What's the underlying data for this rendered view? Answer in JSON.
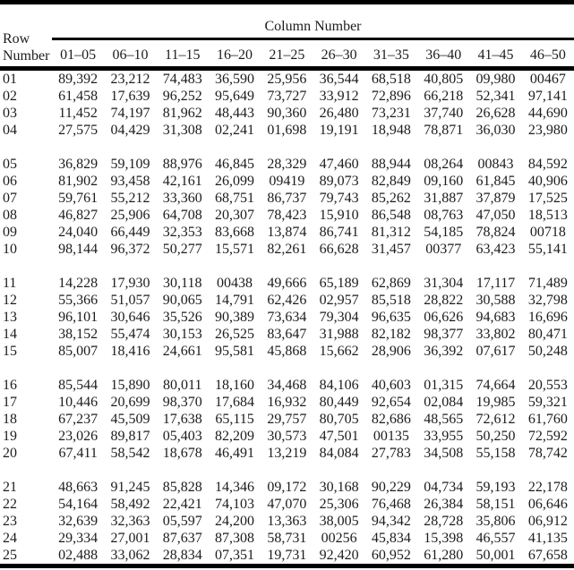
{
  "table": {
    "title": "Column Number",
    "row_header_line1": "Row",
    "row_header_line2": "Number",
    "column_headers": [
      "01–05",
      "06–10",
      "11–15",
      "16–20",
      "21–25",
      "26–30",
      "31–35",
      "36–40",
      "41–45",
      "46–50"
    ],
    "group_breaks_after": [
      "04",
      "10",
      "15",
      "20"
    ],
    "rows": [
      {
        "row_number": "01",
        "values": [
          "89,392",
          "23,212",
          "74,483",
          "36,590",
          "25,956",
          "36,544",
          "68,518",
          "40,805",
          "09,980",
          "00467"
        ]
      },
      {
        "row_number": "02",
        "values": [
          "61,458",
          "17,639",
          "96,252",
          "95,649",
          "73,727",
          "33,912",
          "72,896",
          "66,218",
          "52,341",
          "97,141"
        ]
      },
      {
        "row_number": "03",
        "values": [
          "11,452",
          "74,197",
          "81,962",
          "48,443",
          "90,360",
          "26,480",
          "73,231",
          "37,740",
          "26,628",
          "44,690"
        ]
      },
      {
        "row_number": "04",
        "values": [
          "27,575",
          "04,429",
          "31,308",
          "02,241",
          "01,698",
          "19,191",
          "18,948",
          "78,871",
          "36,030",
          "23,980"
        ]
      },
      {
        "row_number": "05",
        "values": [
          "36,829",
          "59,109",
          "88,976",
          "46,845",
          "28,329",
          "47,460",
          "88,944",
          "08,264",
          "00843",
          "84,592"
        ]
      },
      {
        "row_number": "06",
        "values": [
          "81,902",
          "93,458",
          "42,161",
          "26,099",
          "09419",
          "89,073",
          "82,849",
          "09,160",
          "61,845",
          "40,906"
        ]
      },
      {
        "row_number": "07",
        "values": [
          "59,761",
          "55,212",
          "33,360",
          "68,751",
          "86,737",
          "79,743",
          "85,262",
          "31,887",
          "37,879",
          "17,525"
        ]
      },
      {
        "row_number": "08",
        "values": [
          "46,827",
          "25,906",
          "64,708",
          "20,307",
          "78,423",
          "15,910",
          "86,548",
          "08,763",
          "47,050",
          "18,513"
        ]
      },
      {
        "row_number": "09",
        "values": [
          "24,040",
          "66,449",
          "32,353",
          "83,668",
          "13,874",
          "86,741",
          "81,312",
          "54,185",
          "78,824",
          "00718"
        ]
      },
      {
        "row_number": "10",
        "values": [
          "98,144",
          "96,372",
          "50,277",
          "15,571",
          "82,261",
          "66,628",
          "31,457",
          "00377",
          "63,423",
          "55,141"
        ]
      },
      {
        "row_number": "11",
        "values": [
          "14,228",
          "17,930",
          "30,118",
          "00438",
          "49,666",
          "65,189",
          "62,869",
          "31,304",
          "17,117",
          "71,489"
        ]
      },
      {
        "row_number": "12",
        "values": [
          "55,366",
          "51,057",
          "90,065",
          "14,791",
          "62,426",
          "02,957",
          "85,518",
          "28,822",
          "30,588",
          "32,798"
        ]
      },
      {
        "row_number": "13",
        "values": [
          "96,101",
          "30,646",
          "35,526",
          "90,389",
          "73,634",
          "79,304",
          "96,635",
          "06,626",
          "94,683",
          "16,696"
        ]
      },
      {
        "row_number": "14",
        "values": [
          "38,152",
          "55,474",
          "30,153",
          "26,525",
          "83,647",
          "31,988",
          "82,182",
          "98,377",
          "33,802",
          "80,471"
        ]
      },
      {
        "row_number": "15",
        "values": [
          "85,007",
          "18,416",
          "24,661",
          "95,581",
          "45,868",
          "15,662",
          "28,906",
          "36,392",
          "07,617",
          "50,248"
        ]
      },
      {
        "row_number": "16",
        "values": [
          "85,544",
          "15,890",
          "80,011",
          "18,160",
          "34,468",
          "84,106",
          "40,603",
          "01,315",
          "74,664",
          "20,553"
        ]
      },
      {
        "row_number": "17",
        "values": [
          "10,446",
          "20,699",
          "98,370",
          "17,684",
          "16,932",
          "80,449",
          "92,654",
          "02,084",
          "19,985",
          "59,321"
        ]
      },
      {
        "row_number": "18",
        "values": [
          "67,237",
          "45,509",
          "17,638",
          "65,115",
          "29,757",
          "80,705",
          "82,686",
          "48,565",
          "72,612",
          "61,760"
        ]
      },
      {
        "row_number": "19",
        "values": [
          "23,026",
          "89,817",
          "05,403",
          "82,209",
          "30,573",
          "47,501",
          "00135",
          "33,955",
          "50,250",
          "72,592"
        ]
      },
      {
        "row_number": "20",
        "values": [
          "67,411",
          "58,542",
          "18,678",
          "46,491",
          "13,219",
          "84,084",
          "27,783",
          "34,508",
          "55,158",
          "78,742"
        ]
      },
      {
        "row_number": "21",
        "values": [
          "48,663",
          "91,245",
          "85,828",
          "14,346",
          "09,172",
          "30,168",
          "90,229",
          "04,734",
          "59,193",
          "22,178"
        ]
      },
      {
        "row_number": "22",
        "values": [
          "54,164",
          "58,492",
          "22,421",
          "74,103",
          "47,070",
          "25,306",
          "76,468",
          "26,384",
          "58,151",
          "06,646"
        ]
      },
      {
        "row_number": "23",
        "values": [
          "32,639",
          "32,363",
          "05,597",
          "24,200",
          "13,363",
          "38,005",
          "94,342",
          "28,728",
          "35,806",
          "06,912"
        ]
      },
      {
        "row_number": "24",
        "values": [
          "29,334",
          "27,001",
          "87,637",
          "87,308",
          "58,731",
          "00256",
          "45,834",
          "15,398",
          "46,557",
          "41,135"
        ]
      },
      {
        "row_number": "25",
        "values": [
          "02,488",
          "33,062",
          "28,834",
          "07,351",
          "19,731",
          "92,420",
          "60,952",
          "61,280",
          "50,001",
          "67,658"
        ]
      }
    ]
  },
  "colors": {
    "rule": "#000000",
    "text": "#1c1c1c",
    "background": "#ffffff"
  }
}
